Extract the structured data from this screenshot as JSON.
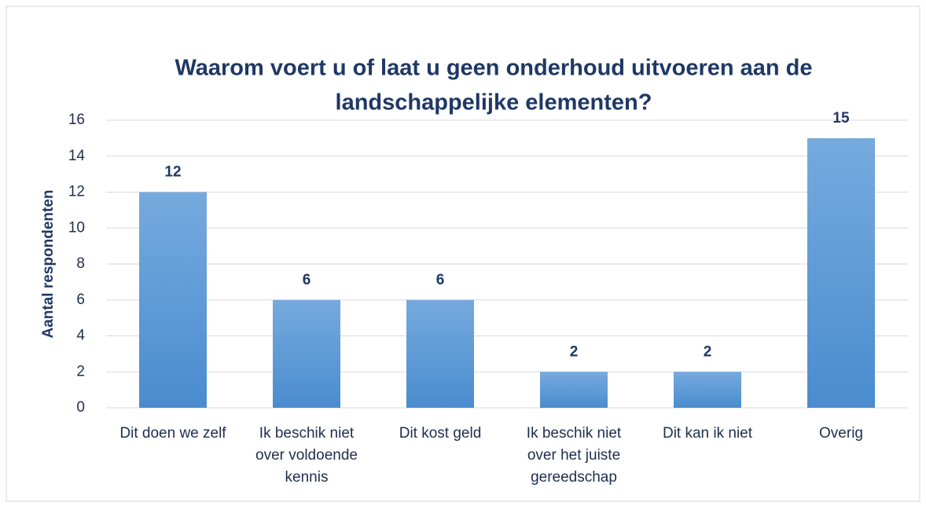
{
  "chart_data": {
    "type": "bar",
    "title": "Waarom voert u of laat u geen onderhoud uitvoeren aan de landschappelijke elementen?",
    "y_label": "Aantal respondenten",
    "categories": [
      "Dit doen we zelf",
      "Ik beschik niet over voldoende kennis",
      "Dit kost geld",
      "Ik beschik niet over het juiste gereedschap",
      "Dit kan ik niet",
      "Overig"
    ],
    "values": [
      12,
      6,
      6,
      2,
      2,
      15
    ],
    "color": "#5b9bd5",
    "ylim": [
      0,
      16
    ],
    "yticks": [
      0,
      2,
      4,
      6,
      8,
      10,
      12,
      14,
      16
    ],
    "grid": true
  }
}
